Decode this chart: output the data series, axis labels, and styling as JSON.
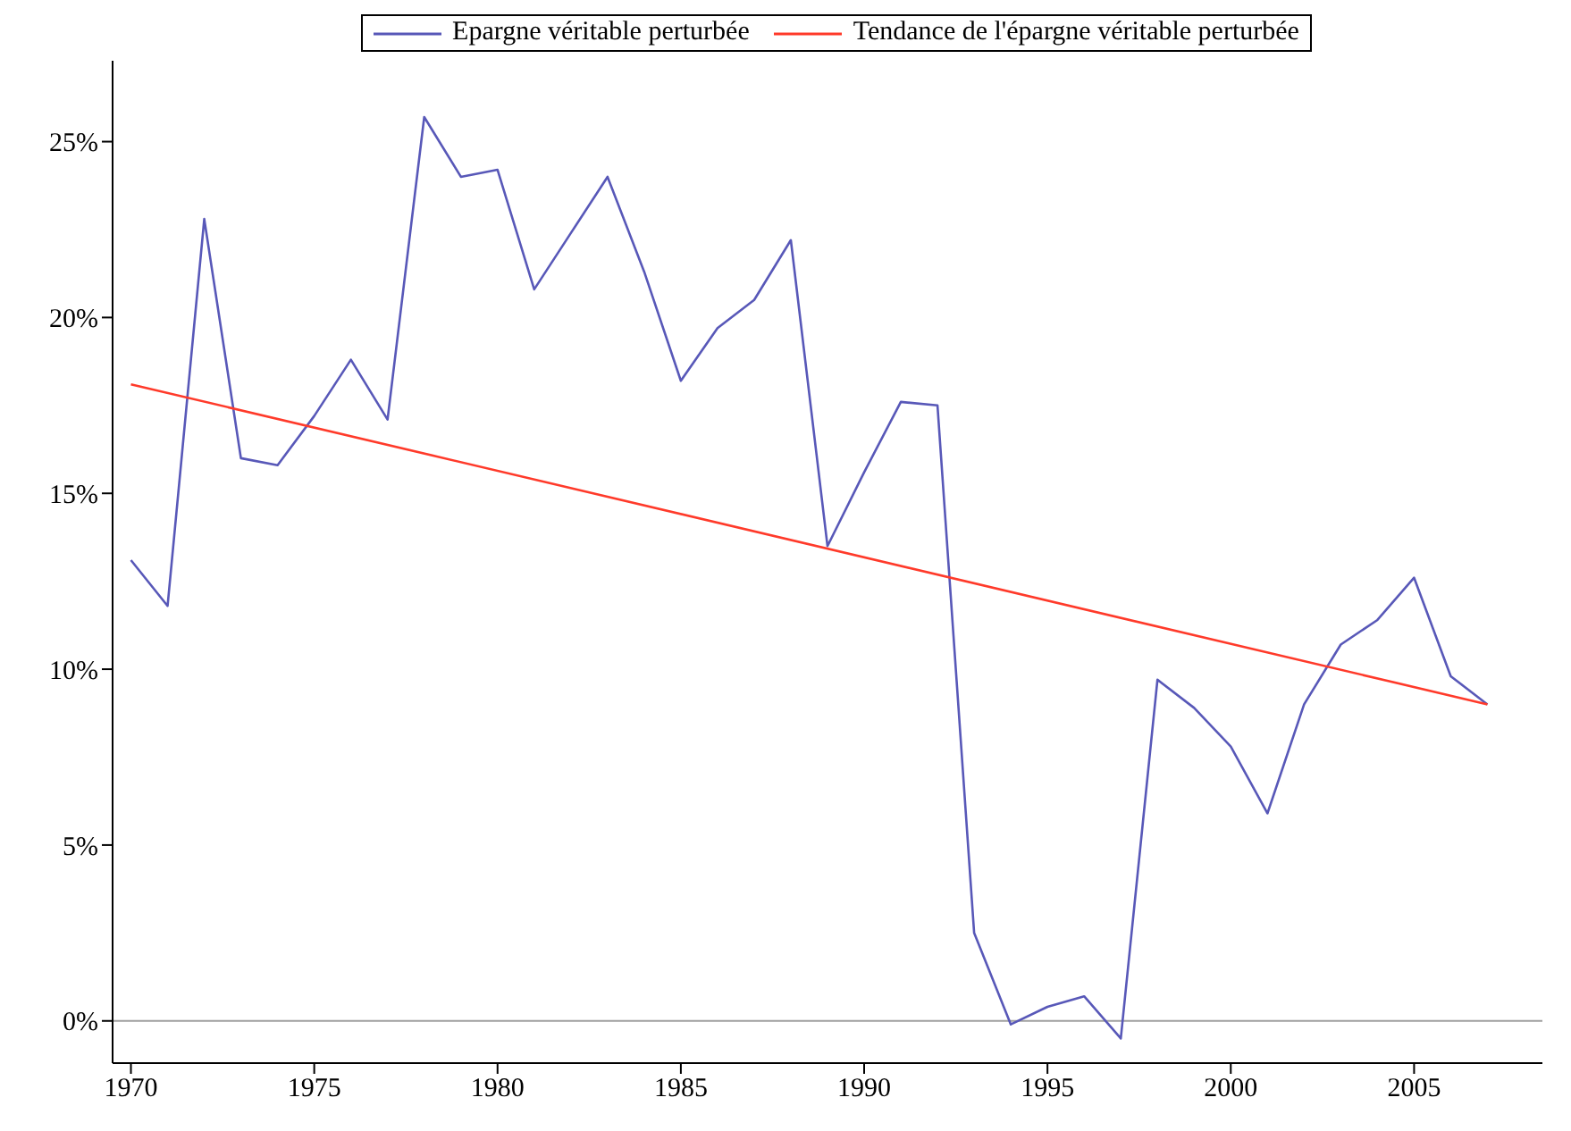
{
  "chart_data": {
    "type": "line",
    "x": [
      1970,
      1971,
      1972,
      1973,
      1974,
      1975,
      1976,
      1977,
      1978,
      1979,
      1980,
      1981,
      1982,
      1983,
      1984,
      1985,
      1986,
      1987,
      1988,
      1989,
      1990,
      1991,
      1992,
      1993,
      1994,
      1995,
      1996,
      1997,
      1998,
      1999,
      2000,
      2001,
      2002,
      2003,
      2004,
      2005,
      2006,
      2007
    ],
    "series": [
      {
        "name": "Epargne véritable perturbée",
        "color": "#5858b8",
        "values": [
          13.1,
          11.8,
          22.8,
          16.0,
          15.8,
          17.2,
          18.8,
          17.1,
          25.7,
          24.0,
          24.2,
          20.8,
          22.4,
          24.0,
          21.3,
          18.2,
          19.7,
          20.5,
          22.2,
          13.5,
          15.6,
          17.6,
          17.5,
          2.5,
          -0.1,
          0.4,
          0.7,
          -0.5,
          9.7,
          8.9,
          7.8,
          5.9,
          9.0,
          10.7,
          11.4,
          12.6,
          9.8,
          9.0
        ]
      },
      {
        "name": "Tendance de l'épargne véritable perturbée",
        "color": "#ff3a2a",
        "x": [
          1970,
          2007
        ],
        "values": [
          18.1,
          9.0
        ]
      }
    ],
    "xlim": [
      1969.5,
      2008.5
    ],
    "xticks": [
      1970,
      1975,
      1980,
      1985,
      1990,
      1995,
      2000,
      2005
    ],
    "ylim": [
      -1.2,
      27.3
    ],
    "yticks": [
      {
        "value": 0,
        "label": "0%"
      },
      {
        "value": 5,
        "label": "5%"
      },
      {
        "value": 10,
        "label": "10%"
      },
      {
        "value": 15,
        "label": "15%"
      },
      {
        "value": 20,
        "label": "20%"
      },
      {
        "value": 25,
        "label": "25%"
      }
    ],
    "ref_lines": [
      {
        "axis": "y",
        "value": 0,
        "label": null,
        "color": "#a0a0a0"
      }
    ],
    "grid": false,
    "legend": "top",
    "marker": "none",
    "line_style": "solid"
  }
}
